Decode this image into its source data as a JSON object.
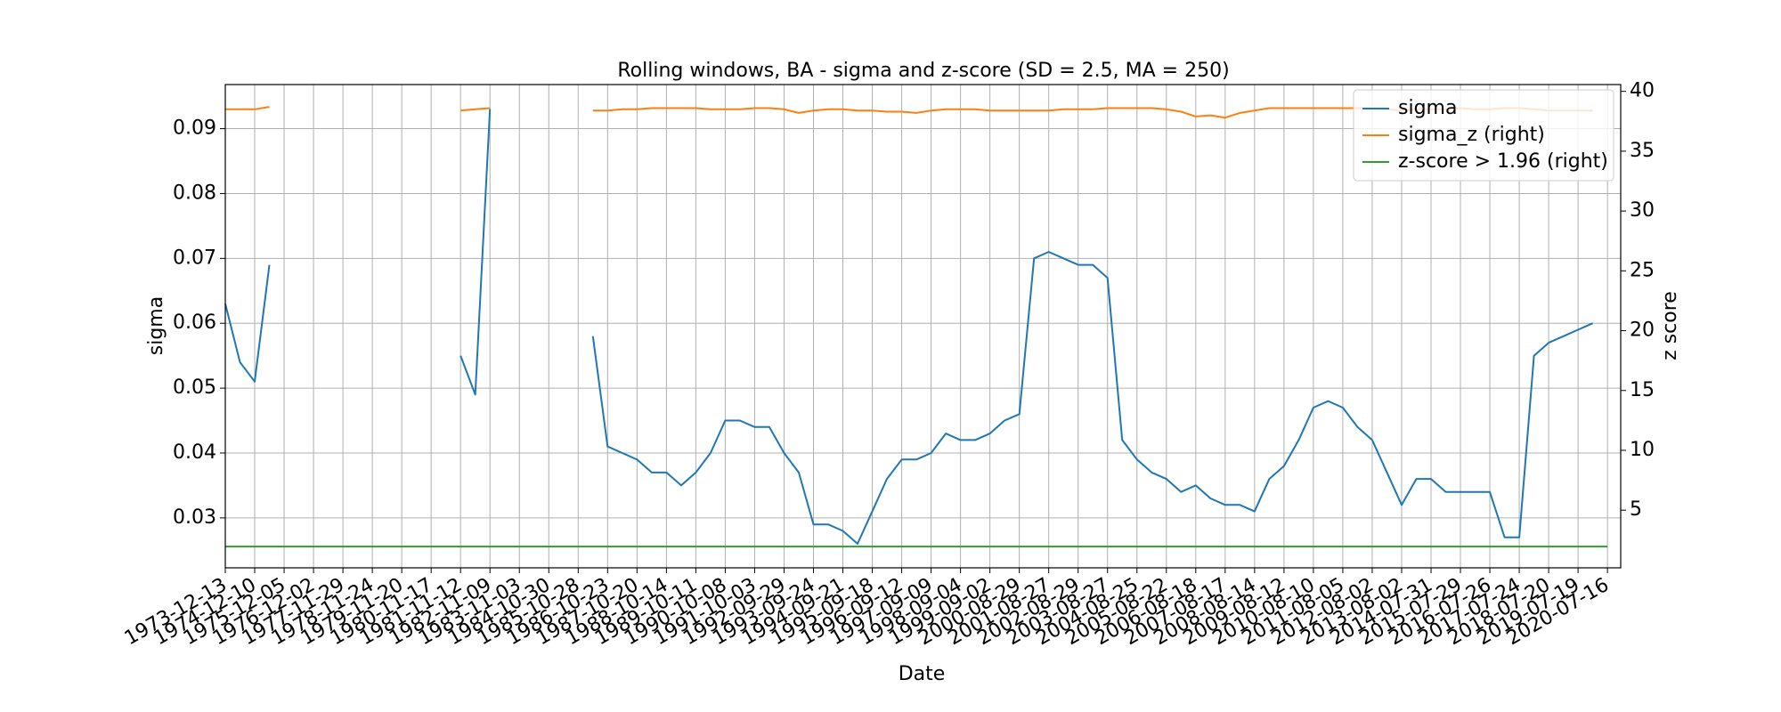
{
  "chart_data": {
    "type": "line",
    "title": "Rolling windows, BA - sigma and z-score (SD = 2.5, MA = 250)",
    "xlabel": "Date",
    "ylabel": "sigma",
    "y2label": "z score",
    "categories": [
      "1973-12-13",
      null,
      "1974-12-10",
      null,
      "1975-12-05",
      null,
      "1976-12-02",
      null,
      "1977-11-29",
      null,
      "1978-11-24",
      null,
      "1979-11-20",
      null,
      "1980-11-17",
      null,
      "1981-11-12",
      null,
      "1982-11-09",
      null,
      "1983-11-03",
      null,
      "1984-10-30",
      null,
      "1985-10-28",
      null,
      "1986-10-23",
      null,
      "1987-10-20",
      null,
      "1988-10-14",
      null,
      "1989-10-11",
      null,
      "1990-10-08",
      null,
      "1991-10-03",
      null,
      "1992-09-29",
      null,
      "1993-09-24",
      null,
      "1994-09-21",
      null,
      "1995-09-18",
      null,
      "1996-09-12",
      null,
      "1997-09-09",
      null,
      "1998-09-04",
      null,
      "1999-09-02",
      null,
      "2000-08-29",
      null,
      "2001-08-27",
      null,
      "2002-08-29",
      null,
      "2003-08-27",
      null,
      "2004-08-25",
      null,
      "2005-08-22",
      null,
      "2006-08-18",
      null,
      "2007-08-17",
      null,
      "2008-08-14",
      null,
      "2009-08-12",
      null,
      "2010-08-10",
      null,
      "2011-08-05",
      null,
      "2012-08-02",
      null,
      "2013-08-02",
      null,
      "2014-07-31",
      null,
      "2015-07-29",
      null,
      "2016-07-26",
      null,
      "2017-07-24",
      null,
      "2018-07-20",
      null,
      "2019-07-19",
      null,
      "2020-07-16"
    ],
    "series": [
      {
        "name": "sigma",
        "color": "#1f77b4",
        "values": [
          0.063,
          0.054,
          0.051,
          0.069,
          null,
          null,
          null,
          null,
          null,
          null,
          null,
          null,
          null,
          null,
          null,
          null,
          0.055,
          0.049,
          0.093,
          null,
          null,
          null,
          null,
          null,
          null,
          0.058,
          0.041,
          0.04,
          0.039,
          0.037,
          0.037,
          0.035,
          0.037,
          0.04,
          0.045,
          0.045,
          0.044,
          0.044,
          0.04,
          0.037,
          0.029,
          0.029,
          0.028,
          0.026,
          0.031,
          0.036,
          0.039,
          0.039,
          0.04,
          0.043,
          0.042,
          0.042,
          0.043,
          0.045,
          0.046,
          0.07,
          0.071,
          0.07,
          0.069,
          0.069,
          0.067,
          0.042,
          0.039,
          0.037,
          0.036,
          0.034,
          0.035,
          0.033,
          0.032,
          0.032,
          0.031,
          0.036,
          0.038,
          0.042,
          0.047,
          0.048,
          0.047,
          0.044,
          0.042,
          0.037,
          0.032,
          0.036,
          0.036,
          0.034,
          0.034,
          0.034,
          0.034,
          0.027,
          0.027,
          0.055,
          0.057,
          0.058,
          0.059,
          0.06,
          null
        ]
      },
      {
        "name": "sigma_z (right)",
        "color": "#ff7f0e",
        "axis": "y2",
        "values": [
          38.5,
          38.5,
          38.5,
          38.7,
          null,
          null,
          null,
          null,
          null,
          null,
          null,
          null,
          null,
          null,
          null,
          null,
          38.4,
          38.5,
          38.6,
          null,
          null,
          null,
          null,
          null,
          null,
          38.4,
          38.4,
          38.5,
          38.5,
          38.6,
          38.6,
          38.6,
          38.6,
          38.5,
          38.5,
          38.5,
          38.6,
          38.6,
          38.5,
          38.2,
          38.4,
          38.5,
          38.5,
          38.4,
          38.4,
          38.3,
          38.3,
          38.2,
          38.4,
          38.5,
          38.5,
          38.5,
          38.4,
          38.4,
          38.4,
          38.4,
          38.4,
          38.5,
          38.5,
          38.5,
          38.6,
          38.6,
          38.6,
          38.6,
          38.5,
          38.3,
          37.9,
          38.0,
          37.8,
          38.2,
          38.4,
          38.6,
          38.6,
          38.6,
          38.6,
          38.6,
          38.6,
          38.6,
          38.6,
          38.5,
          38.4,
          38.5,
          38.5,
          38.5,
          38.6,
          38.5,
          38.5,
          38.6,
          38.6,
          38.5,
          38.4,
          38.4,
          38.4,
          38.4,
          null
        ]
      },
      {
        "name": "z-score > 1.96 (right)",
        "color": "#2ca02c",
        "axis": "y2",
        "values": [
          1.96,
          1.96,
          1.96,
          1.96,
          1.96,
          1.96,
          1.96,
          1.96,
          1.96,
          1.96,
          1.96,
          1.96,
          1.96,
          1.96,
          1.96,
          1.96,
          1.96,
          1.96,
          1.96,
          1.96,
          1.96,
          1.96,
          1.96,
          1.96,
          1.96,
          1.96,
          1.96,
          1.96,
          1.96,
          1.96,
          1.96,
          1.96,
          1.96,
          1.96,
          1.96,
          1.96,
          1.96,
          1.96,
          1.96,
          1.96,
          1.96,
          1.96,
          1.96,
          1.96,
          1.96,
          1.96,
          1.96,
          1.96,
          1.96,
          1.96,
          1.96,
          1.96,
          1.96,
          1.96,
          1.96,
          1.96,
          1.96,
          1.96,
          1.96,
          1.96,
          1.96,
          1.96,
          1.96,
          1.96,
          1.96,
          1.96,
          1.96,
          1.96,
          1.96,
          1.96,
          1.96,
          1.96,
          1.96,
          1.96,
          1.96,
          1.96,
          1.96,
          1.96,
          1.96,
          1.96,
          1.96,
          1.96,
          1.96,
          1.96,
          1.96,
          1.96,
          1.96,
          1.96,
          1.96,
          1.96,
          1.96,
          1.96,
          1.96,
          1.96,
          1.96
        ]
      }
    ],
    "ylim": [
      0.0223,
      0.0968
    ],
    "yticks": [
      0.03,
      0.04,
      0.05,
      0.06,
      0.07,
      0.08,
      0.09
    ],
    "y2lim": [
      0.18,
      40.57
    ],
    "y2ticks": [
      5,
      10,
      15,
      20,
      25,
      30,
      35,
      40
    ],
    "grid": true,
    "legend": "upper right"
  }
}
